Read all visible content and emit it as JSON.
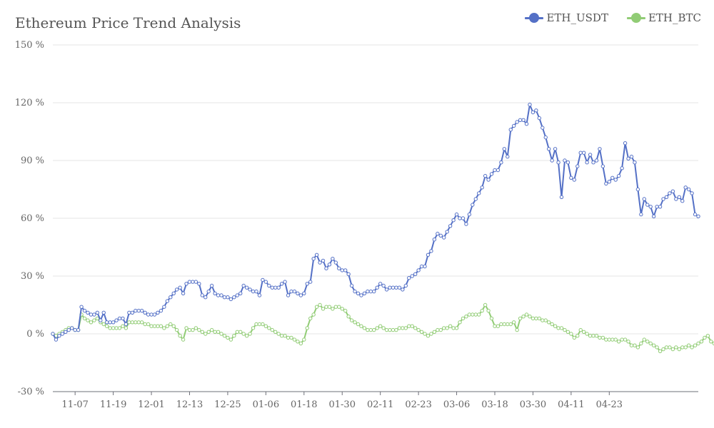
{
  "chart_data": {
    "type": "line",
    "title": "Ethereum Price Trend Analysis",
    "xlabel": "",
    "ylabel": "",
    "ylim": [
      -30,
      150
    ],
    "y_ticks": [
      "-30 %",
      "0 %",
      "30 %",
      "60 %",
      "90 %",
      "120 %",
      "150 %"
    ],
    "y_tick_values": [
      -30,
      0,
      30,
      60,
      90,
      120,
      150
    ],
    "x_ticks": [
      "11-07",
      "11-19",
      "12-01",
      "12-13",
      "12-25",
      "01-06",
      "01-18",
      "01-30",
      "02-11",
      "02-23",
      "03-06",
      "03-18",
      "03-30",
      "04-11",
      "04-23"
    ],
    "x_tick_index": [
      7,
      19,
      31,
      43,
      55,
      67,
      79,
      91,
      103,
      115,
      127,
      139,
      151,
      163,
      175
    ],
    "grid": true,
    "legend_position": "top-right",
    "colors": {
      "ETH_USDT": "#5470c6",
      "ETH_BTC": "#91cc75"
    },
    "series": [
      {
        "name": "ETH_USDT",
        "values": [
          0,
          -3,
          -1,
          0,
          1,
          2,
          3,
          2,
          2,
          14,
          12,
          11,
          10,
          10,
          11,
          7,
          11,
          6,
          6,
          6,
          7,
          8,
          8,
          5,
          11,
          11,
          12,
          12,
          12,
          11,
          10,
          10,
          10,
          11,
          12,
          14,
          17,
          19,
          21,
          23,
          24,
          21,
          26,
          27,
          27,
          27,
          26,
          20,
          19,
          22,
          25,
          21,
          20,
          20,
          19,
          19,
          18,
          19,
          20,
          21,
          25,
          24,
          23,
          22,
          22,
          20,
          28,
          27,
          25,
          24,
          24,
          24,
          26,
          27,
          20,
          22,
          22,
          21,
          20,
          21,
          26,
          27,
          39,
          41,
          37,
          38,
          34,
          36,
          39,
          37,
          34,
          33,
          33,
          31,
          25,
          22,
          21,
          20,
          21,
          22,
          22,
          22,
          24,
          26,
          25,
          23,
          24,
          24,
          24,
          24,
          23,
          25,
          29,
          30,
          31,
          33,
          35,
          35,
          41,
          43,
          49,
          52,
          51,
          50,
          53,
          56,
          59,
          62,
          60,
          60,
          57,
          62,
          67,
          70,
          73,
          76,
          82,
          80,
          83,
          85,
          85,
          89,
          96,
          92,
          106,
          108,
          110,
          111,
          111,
          109,
          119,
          115,
          116,
          112,
          107,
          102,
          96,
          90,
          96,
          89,
          71,
          90,
          89,
          81,
          80,
          87,
          94,
          94,
          89,
          93,
          89,
          90,
          96,
          87,
          78,
          79,
          81,
          80,
          82,
          86,
          99,
          91,
          92,
          89,
          75,
          62,
          70,
          67,
          66,
          61,
          66,
          66,
          70,
          71,
          73,
          74,
          70,
          71,
          69,
          76,
          75,
          73,
          62,
          61
        ]
      },
      {
        "name": "ETH_BTC",
        "values": [
          0,
          -1,
          0,
          1,
          2,
          3,
          3,
          2,
          2,
          10,
          8,
          7,
          6,
          7,
          8,
          6,
          5,
          4,
          3,
          3,
          3,
          3,
          4,
          3,
          6,
          6,
          6,
          6,
          6,
          5,
          5,
          4,
          4,
          4,
          4,
          3,
          4,
          5,
          4,
          2,
          -1,
          -3,
          3,
          2,
          2,
          3,
          2,
          1,
          0,
          1,
          2,
          1,
          1,
          0,
          -1,
          -2,
          -3,
          -1,
          1,
          1,
          0,
          -1,
          0,
          3,
          5,
          5,
          5,
          4,
          3,
          2,
          1,
          0,
          -1,
          -1,
          -2,
          -2,
          -3,
          -4,
          -5,
          -3,
          3,
          8,
          10,
          14,
          15,
          13,
          14,
          14,
          13,
          14,
          14,
          13,
          12,
          9,
          7,
          6,
          5,
          4,
          3,
          2,
          2,
          2,
          3,
          4,
          3,
          2,
          2,
          2,
          2,
          3,
          3,
          3,
          4,
          4,
          3,
          2,
          1,
          0,
          -1,
          0,
          1,
          2,
          2,
          3,
          3,
          4,
          3,
          3,
          6,
          8,
          9,
          10,
          10,
          10,
          10,
          12,
          15,
          12,
          8,
          4,
          4,
          5,
          5,
          5,
          5,
          6,
          2,
          8,
          9,
          10,
          9,
          8,
          8,
          8,
          7,
          7,
          6,
          5,
          4,
          3,
          3,
          2,
          1,
          0,
          -2,
          -1,
          2,
          1,
          0,
          -1,
          -1,
          -1,
          -2,
          -2,
          -3,
          -3,
          -3,
          -3,
          -4,
          -3,
          -3,
          -4,
          -6,
          -6,
          -7,
          -5,
          -3,
          -4,
          -5,
          -6,
          -7,
          -9,
          -8,
          -7,
          -7,
          -8,
          -7,
          -8,
          -7,
          -7,
          -6,
          -7,
          -6,
          -5,
          -4,
          -2,
          -1,
          -4,
          -5,
          -3
        ]
      }
    ]
  }
}
